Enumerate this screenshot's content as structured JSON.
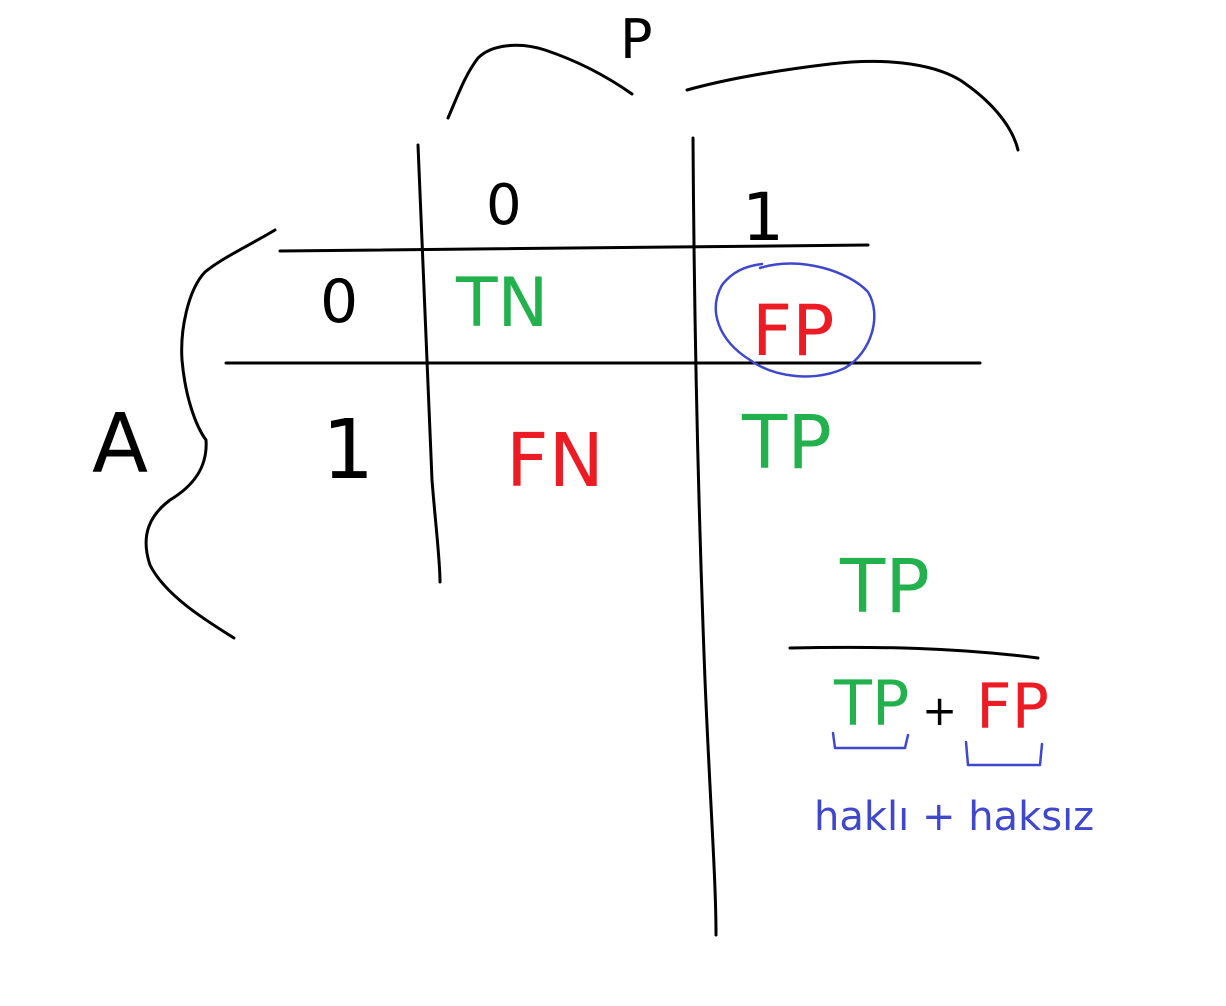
{
  "labels": {
    "predicted_axis": "P",
    "actual_axis": "A",
    "pred_col_0": "0",
    "pred_col_1": "1",
    "actual_row_0": "0",
    "actual_row_1": "1"
  },
  "cells": {
    "tn": "TN",
    "fp": "FP",
    "fn": "FN",
    "tp": "TP"
  },
  "formula": {
    "numerator": "TP",
    "denominator_left": "TP",
    "operator": "+",
    "denominator_right": "FP",
    "annotation": "haklı + haksız"
  },
  "colors": {
    "ink": "#000000",
    "correct": "#22b14c",
    "error": "#ed1c24",
    "highlight": "#3f48cc"
  }
}
